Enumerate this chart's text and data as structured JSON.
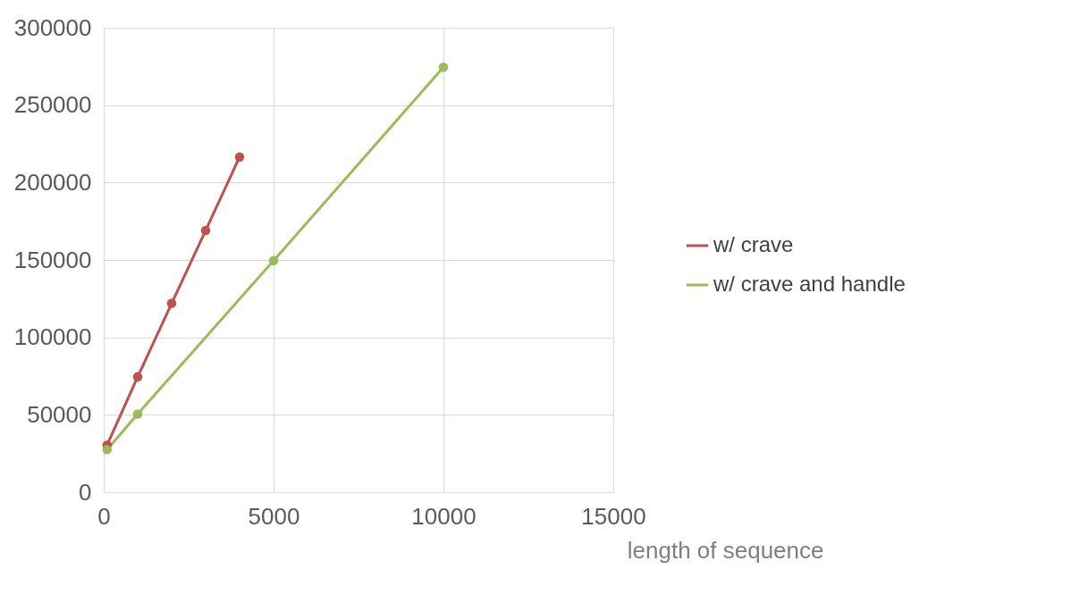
{
  "chart_data": {
    "type": "line",
    "xlabel": "length of sequence",
    "xlim": [
      0,
      15000
    ],
    "xticks": [
      0,
      5000,
      10000,
      15000
    ],
    "ylim": [
      0,
      300000
    ],
    "yticks": [
      0,
      50000,
      100000,
      150000,
      200000,
      250000,
      300000
    ],
    "grid": true,
    "legend": "right",
    "marker": "circle",
    "line_style": "solid",
    "series": [
      {
        "name": "w/ crave",
        "color": "#c0504d",
        "x": [
          100,
          1000,
          2000,
          3000,
          4000
        ],
        "values": [
          30500,
          74500,
          122000,
          169000,
          216500
        ]
      },
      {
        "name": "w/ crave and handle",
        "color": "#9bbb59",
        "x": [
          100,
          1000,
          5000,
          10000
        ],
        "values": [
          27500,
          50500,
          149500,
          274500
        ]
      }
    ]
  }
}
